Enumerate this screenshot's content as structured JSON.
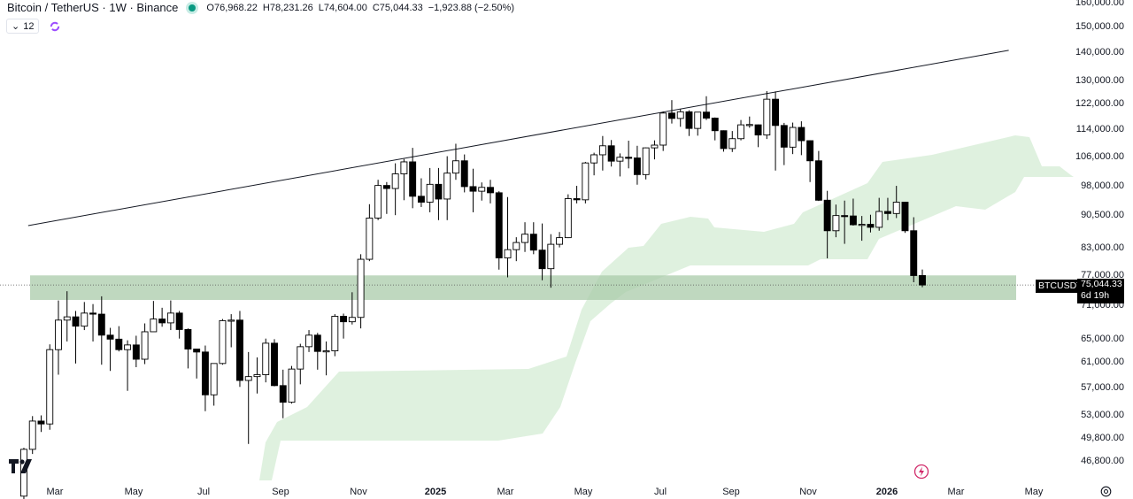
{
  "header": {
    "title": "Bitcoin / TetherUS · 1W · Binance",
    "open": "O76,968.22",
    "high": "H78,231.26",
    "low": "L74,604.00",
    "close": "C75,044.33",
    "change": "−1,923.88 (−2.50%)",
    "indicator_count": "12",
    "status_color": "#089981"
  },
  "price_tag": {
    "symbol": "BTCUSDT",
    "price": "75,044.33",
    "countdown": "6d 19h"
  },
  "colors": {
    "up_fill": "#ffffff",
    "down_fill": "#000000",
    "zone": "#a9cbaa",
    "cloud": "#dcefdc",
    "trendline": "#131722"
  },
  "chart_data": {
    "type": "candlestick",
    "title": "Bitcoin / TetherUS · 1W · Binance",
    "scale": "log",
    "ylim": [
      46000,
      162000
    ],
    "y_ticks": [
      160000,
      150000,
      140000,
      130000,
      122000,
      114000,
      106000,
      98000,
      90500,
      83000,
      77000,
      71000,
      65000,
      61000,
      57000,
      53000,
      49800,
      46800
    ],
    "y_tick_labels": [
      "160,000.00",
      "150,000.00",
      "140,000.00",
      "130,000.00",
      "122,000.00",
      "114,000.00",
      "106,000.00",
      "98,000.00",
      "90,500.00",
      "83,000.00",
      "77,000.00",
      "71,000.00",
      "65,000.00",
      "61,000.00",
      "57,000.00",
      "53,000.00",
      "49,800.00",
      "46,800.00"
    ],
    "x_tick_labels": [
      "Mar",
      "May",
      "Jul",
      "Sep",
      "Nov",
      "2025",
      "Mar",
      "May",
      "Jul",
      "Sep",
      "Nov",
      "2026",
      "Mar",
      "May"
    ],
    "current_price": 75044.33,
    "support_zone": [
      72100,
      77000
    ],
    "trendline": {
      "from": [
        1,
        88000
      ],
      "to": [
        114,
        140800
      ]
    },
    "ohlc_columns": [
      "open",
      "high",
      "low",
      "close"
    ],
    "candles": [
      [
        42600,
        48500,
        42200,
        48300
      ],
      [
        48300,
        52800,
        47700,
        52100
      ],
      [
        52100,
        52900,
        50600,
        51700
      ],
      [
        51700,
        64000,
        50900,
        63100
      ],
      [
        63100,
        72000,
        59000,
        68300
      ],
      [
        68300,
        73800,
        64500,
        68900
      ],
      [
        68900,
        70000,
        60800,
        67200
      ],
      [
        67200,
        71700,
        66500,
        69600
      ],
      [
        69600,
        71300,
        64500,
        69400
      ],
      [
        69400,
        72800,
        60600,
        65600
      ],
      [
        65600,
        66900,
        59600,
        64900
      ],
      [
        64900,
        67200,
        62800,
        63100
      ],
      [
        63100,
        64700,
        56500,
        63900
      ],
      [
        63900,
        65500,
        60200,
        61500
      ],
      [
        61500,
        67700,
        60700,
        66200
      ],
      [
        66200,
        71900,
        66200,
        68500
      ],
      [
        68500,
        70600,
        67100,
        67800
      ],
      [
        67800,
        72000,
        66500,
        69600
      ],
      [
        69600,
        70000,
        65000,
        66600
      ],
      [
        66600,
        66800,
        60000,
        63200
      ],
      [
        63200,
        63200,
        58400,
        62700
      ],
      [
        62700,
        63800,
        53500,
        55900
      ],
      [
        55900,
        60800,
        54300,
        60800
      ],
      [
        60800,
        68500,
        60600,
        68200
      ],
      [
        68200,
        69400,
        63500,
        68300
      ],
      [
        68300,
        70000,
        57100,
        58100
      ],
      [
        58100,
        62700,
        49000,
        58700
      ],
      [
        58700,
        61800,
        56100,
        59000
      ],
      [
        59000,
        65000,
        57800,
        64200
      ],
      [
        64200,
        64900,
        57200,
        57300
      ],
      [
        57300,
        59800,
        52500,
        54800
      ],
      [
        54800,
        60400,
        54600,
        59900
      ],
      [
        59900,
        64100,
        57500,
        63600
      ],
      [
        63600,
        66500,
        62700,
        65600
      ],
      [
        65600,
        66000,
        59800,
        62800
      ],
      [
        62800,
        64500,
        58900,
        62900
      ],
      [
        62900,
        69400,
        62000,
        69000
      ],
      [
        69000,
        69500,
        65000,
        68000
      ],
      [
        68000,
        73600,
        67500,
        68800
      ],
      [
        68800,
        81500,
        66800,
        80400
      ],
      [
        80400,
        93200,
        80000,
        89800
      ],
      [
        89800,
        99500,
        89300,
        98000
      ],
      [
        98000,
        98900,
        90800,
        97200
      ],
      [
        97200,
        104000,
        90500,
        101100
      ],
      [
        101100,
        105200,
        94200,
        104400
      ],
      [
        104400,
        108400,
        92200,
        95200
      ],
      [
        95200,
        99900,
        92500,
        93700
      ],
      [
        93700,
        102700,
        91200,
        98300
      ],
      [
        98300,
        102700,
        89300,
        94500
      ],
      [
        94500,
        106000,
        89300,
        101300
      ],
      [
        101300,
        109600,
        99500,
        104700
      ],
      [
        104700,
        106500,
        96200,
        97700
      ],
      [
        97700,
        102500,
        91200,
        96500
      ],
      [
        96500,
        98800,
        94100,
        97500
      ],
      [
        97500,
        99500,
        93400,
        96100
      ],
      [
        96100,
        96500,
        78200,
        80700
      ],
      [
        80700,
        95000,
        76600,
        82500
      ],
      [
        82500,
        85300,
        80000,
        84100
      ],
      [
        84100,
        88800,
        82000,
        86000
      ],
      [
        86000,
        88800,
        81500,
        82400
      ],
      [
        82400,
        88500,
        76000,
        78400
      ],
      [
        78400,
        86000,
        74500,
        83700
      ],
      [
        83700,
        86500,
        83000,
        85200
      ],
      [
        85200,
        95700,
        85100,
        94600
      ],
      [
        94600,
        97900,
        93400,
        94300
      ],
      [
        94300,
        104400,
        93400,
        104100
      ],
      [
        104100,
        107000,
        100700,
        106400
      ],
      [
        106400,
        111900,
        102000,
        109000
      ],
      [
        109000,
        110700,
        103100,
        104600
      ],
      [
        104600,
        106800,
        100400,
        105700
      ],
      [
        105700,
        110500,
        102600,
        105500
      ],
      [
        105500,
        109000,
        98200,
        100900
      ],
      [
        100900,
        108500,
        99600,
        108400
      ],
      [
        108400,
        110600,
        105100,
        109200
      ],
      [
        109200,
        119500,
        107500,
        119000
      ],
      [
        119000,
        123200,
        115700,
        117300
      ],
      [
        117300,
        120200,
        114700,
        119400
      ],
      [
        119400,
        119900,
        111900,
        114200
      ],
      [
        114200,
        119300,
        112000,
        119300
      ],
      [
        119300,
        124500,
        116800,
        117400
      ],
      [
        117400,
        117600,
        110600,
        113500
      ],
      [
        113500,
        113600,
        107300,
        108200
      ],
      [
        108200,
        113400,
        107200,
        111100
      ],
      [
        111100,
        116800,
        110600,
        115300
      ],
      [
        115300,
        117900,
        114400,
        115400
      ],
      [
        115300,
        115400,
        108600,
        112200
      ],
      [
        112200,
        126200,
        111000,
        123500
      ],
      [
        123500,
        126100,
        102000,
        115100
      ],
      [
        115100,
        115900,
        103500,
        108600
      ],
      [
        108600,
        116000,
        106600,
        114500
      ],
      [
        114500,
        116400,
        106300,
        110500
      ],
      [
        110500,
        110600,
        98900,
        104700
      ],
      [
        104700,
        107500,
        94000,
        94200
      ],
      [
        94200,
        96600,
        80600,
        86800
      ],
      [
        86800,
        93100,
        85300,
        90400
      ],
      [
        90400,
        94100,
        83800,
        90300
      ],
      [
        90300,
        94600,
        88000,
        88200
      ],
      [
        88200,
        90300,
        84500,
        88300
      ],
      [
        88300,
        90600,
        86400,
        87600
      ],
      [
        87600,
        94800,
        86800,
        91400
      ],
      [
        91400,
        94800,
        89300,
        90900
      ],
      [
        90900,
        97900,
        89800,
        93700
      ],
      [
        93700,
        93800,
        86300,
        86800
      ],
      [
        86800,
        90000,
        75600,
        76968.22
      ],
      [
        76968.22,
        78231.26,
        74604,
        75044.33
      ]
    ]
  }
}
